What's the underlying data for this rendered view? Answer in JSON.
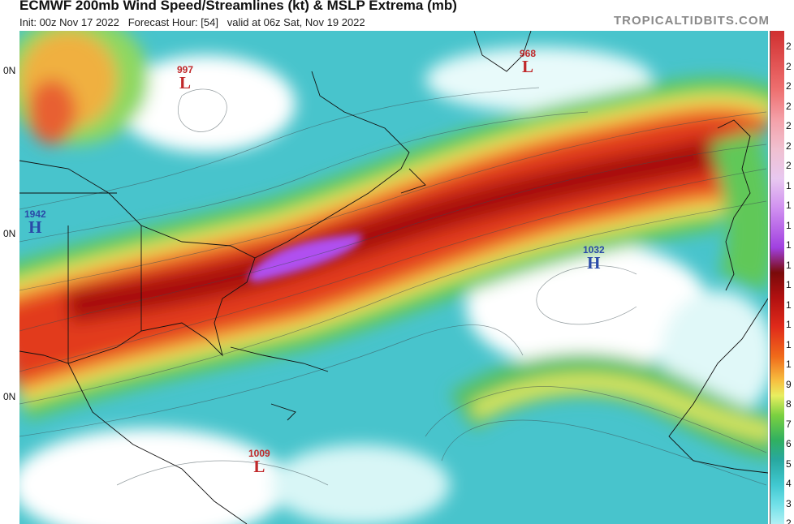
{
  "header": {
    "title": "ECMWF 200mb Wind Speed/Streamlines (kt) & MSLP Extrema (mb)",
    "subtitle": "Init: 00z Nov 17 2022   Forecast Hour: [54]   valid at 06z Sat, Nov 19 2022",
    "site": "TROPICALTIDBITS.COM"
  },
  "pressure_centers": [
    {
      "value": "997",
      "symbol": "L"
    },
    {
      "value": "968",
      "symbol": "L"
    },
    {
      "value": "1942",
      "symbol": "H"
    },
    {
      "value": "1032",
      "symbol": "H"
    },
    {
      "value": "1009",
      "symbol": "L"
    }
  ],
  "latitude_labels": [
    "0N",
    "0N",
    "0N"
  ],
  "colorbar_labels": [
    "2",
    "2",
    "2",
    "2",
    "2",
    "2",
    "2",
    "1",
    "1",
    "1",
    "1",
    "1",
    "1",
    "1",
    "1",
    "1",
    "1",
    "9",
    "8",
    "7",
    "6",
    "5",
    "4",
    "3",
    "2"
  ]
}
